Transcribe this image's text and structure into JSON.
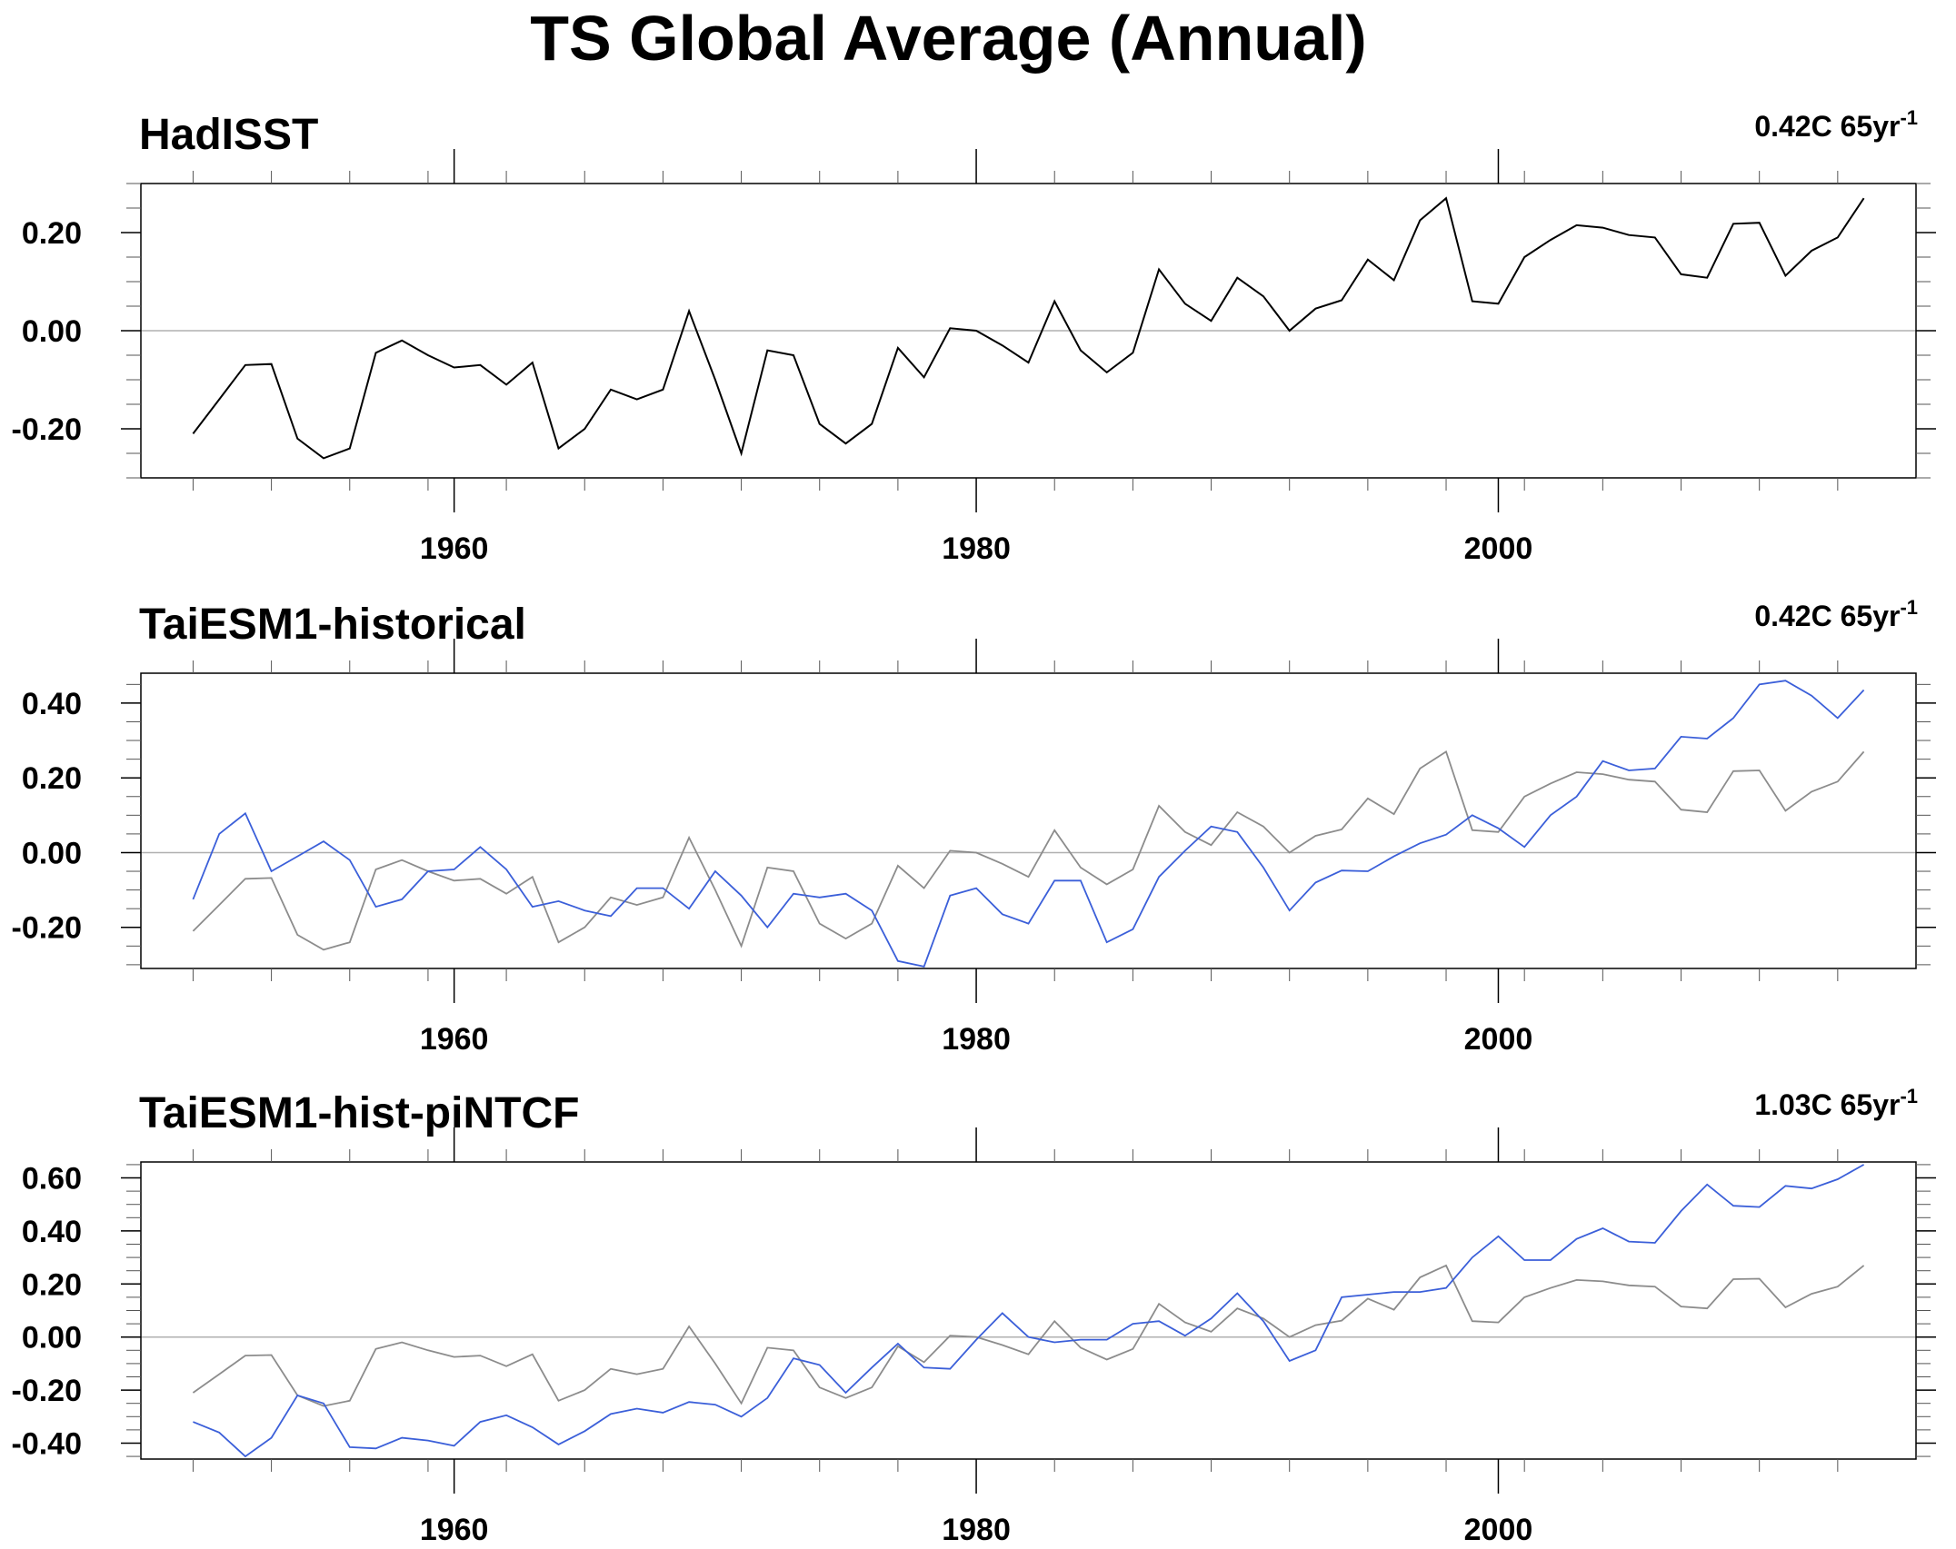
{
  "title": "TS Global Average (Annual)",
  "colors": {
    "observed": "#000000",
    "observed_overlay": "#8c8c8c",
    "model": "#3b5fd9",
    "zero_line": "#b0b0b0",
    "axis": "#000000"
  },
  "chart_data": [
    {
      "type": "line",
      "title": "HadISST",
      "trend_value": "0.42C 65yr",
      "trend_exponent": "-1",
      "xlim": [
        1948,
        2016
      ],
      "ylim": [
        -0.3,
        0.3
      ],
      "yticks": [
        -0.2,
        0.0,
        0.2
      ],
      "ytick_labels": [
        "-0.20",
        "0.00",
        "0.20"
      ],
      "xticks": [
        1960,
        1980,
        2000
      ],
      "xtick_labels": [
        "1960",
        "1980",
        "2000"
      ],
      "x_start": 1950,
      "series": [
        {
          "role": "observed",
          "values": [
            -0.21,
            -0.14,
            -0.07,
            -0.068,
            -0.22,
            -0.26,
            -0.24,
            -0.045,
            -0.02,
            -0.05,
            -0.075,
            -0.07,
            -0.11,
            -0.065,
            -0.24,
            -0.2,
            -0.12,
            -0.14,
            -0.12,
            0.04,
            -0.1,
            -0.25,
            -0.04,
            -0.05,
            -0.19,
            -0.23,
            -0.19,
            -0.035,
            -0.095,
            0.005,
            0.0,
            -0.03,
            -0.065,
            0.06,
            -0.04,
            -0.085,
            -0.045,
            0.125,
            0.055,
            0.02,
            0.108,
            0.07,
            0.0,
            0.045,
            0.062,
            0.145,
            0.103,
            0.225,
            0.27,
            0.06,
            0.055,
            0.15,
            0.185,
            0.215,
            0.21,
            0.195,
            0.19,
            0.115,
            0.108,
            0.218,
            0.22,
            0.112,
            0.163,
            0.19,
            0.27
          ]
        }
      ]
    },
    {
      "type": "line",
      "title": "TaiESM1-historical",
      "trend_value": "0.42C 65yr",
      "trend_exponent": "-1",
      "xlim": [
        1948,
        2016
      ],
      "ylim": [
        -0.31,
        0.48
      ],
      "yticks": [
        -0.2,
        0.0,
        0.2,
        0.4
      ],
      "ytick_labels": [
        "-0.20",
        "0.00",
        "0.20",
        "0.40"
      ],
      "xticks": [
        1960,
        1980,
        2000
      ],
      "xtick_labels": [
        "1960",
        "1980",
        "2000"
      ],
      "x_start": 1950,
      "series": [
        {
          "role": "observed_overlay",
          "values": [
            -0.21,
            -0.14,
            -0.07,
            -0.068,
            -0.22,
            -0.26,
            -0.24,
            -0.045,
            -0.02,
            -0.05,
            -0.075,
            -0.07,
            -0.11,
            -0.065,
            -0.24,
            -0.2,
            -0.12,
            -0.14,
            -0.12,
            0.04,
            -0.1,
            -0.25,
            -0.04,
            -0.05,
            -0.19,
            -0.23,
            -0.19,
            -0.035,
            -0.095,
            0.005,
            0.0,
            -0.03,
            -0.065,
            0.06,
            -0.04,
            -0.085,
            -0.045,
            0.125,
            0.055,
            0.02,
            0.108,
            0.07,
            0.0,
            0.045,
            0.062,
            0.145,
            0.103,
            0.225,
            0.27,
            0.06,
            0.055,
            0.15,
            0.185,
            0.215,
            0.21,
            0.195,
            0.19,
            0.115,
            0.108,
            0.218,
            0.22,
            0.112,
            0.163,
            0.19,
            0.27
          ]
        },
        {
          "role": "model",
          "values": [
            -0.125,
            0.05,
            0.105,
            -0.05,
            -0.01,
            0.03,
            -0.02,
            -0.145,
            -0.125,
            -0.05,
            -0.045,
            0.015,
            -0.045,
            -0.145,
            -0.13,
            -0.155,
            -0.17,
            -0.095,
            -0.095,
            -0.15,
            -0.05,
            -0.115,
            -0.2,
            -0.11,
            -0.12,
            -0.11,
            -0.155,
            -0.29,
            -0.305,
            -0.115,
            -0.095,
            -0.165,
            -0.19,
            -0.075,
            -0.075,
            -0.24,
            -0.205,
            -0.065,
            0.005,
            0.07,
            0.055,
            -0.04,
            -0.155,
            -0.08,
            -0.048,
            -0.05,
            -0.01,
            0.025,
            0.048,
            0.1,
            0.065,
            0.015,
            0.1,
            0.15,
            0.245,
            0.22,
            0.225,
            0.31,
            0.305,
            0.36,
            0.45,
            0.46,
            0.42,
            0.36,
            0.435
          ]
        }
      ]
    },
    {
      "type": "line",
      "title": "TaiESM1-hist-piNTCF",
      "trend_value": "1.03C 65yr",
      "trend_exponent": "-1",
      "xlim": [
        1948,
        2016
      ],
      "ylim": [
        -0.46,
        0.66
      ],
      "yticks": [
        -0.4,
        -0.2,
        0.0,
        0.2,
        0.4,
        0.6
      ],
      "ytick_labels": [
        "-0.40",
        "-0.20",
        "0.00",
        "0.20",
        "0.40",
        "0.60"
      ],
      "xticks": [
        1960,
        1980,
        2000
      ],
      "xtick_labels": [
        "1960",
        "1980",
        "2000"
      ],
      "x_start": 1950,
      "series": [
        {
          "role": "observed_overlay",
          "values": [
            -0.21,
            -0.14,
            -0.07,
            -0.068,
            -0.22,
            -0.26,
            -0.24,
            -0.045,
            -0.02,
            -0.05,
            -0.075,
            -0.07,
            -0.11,
            -0.065,
            -0.24,
            -0.2,
            -0.12,
            -0.14,
            -0.12,
            0.04,
            -0.1,
            -0.25,
            -0.04,
            -0.05,
            -0.19,
            -0.23,
            -0.19,
            -0.035,
            -0.095,
            0.005,
            0.0,
            -0.03,
            -0.065,
            0.06,
            -0.04,
            -0.085,
            -0.045,
            0.125,
            0.055,
            0.02,
            0.108,
            0.07,
            0.0,
            0.045,
            0.062,
            0.145,
            0.103,
            0.225,
            0.27,
            0.06,
            0.055,
            0.15,
            0.185,
            0.215,
            0.21,
            0.195,
            0.19,
            0.115,
            0.108,
            0.218,
            0.22,
            0.112,
            0.163,
            0.19,
            0.27
          ]
        },
        {
          "role": "model",
          "values": [
            -0.32,
            -0.36,
            -0.45,
            -0.38,
            -0.22,
            -0.25,
            -0.415,
            -0.42,
            -0.38,
            -0.39,
            -0.41,
            -0.32,
            -0.295,
            -0.34,
            -0.405,
            -0.355,
            -0.29,
            -0.27,
            -0.285,
            -0.245,
            -0.255,
            -0.3,
            -0.23,
            -0.08,
            -0.105,
            -0.21,
            -0.115,
            -0.025,
            -0.115,
            -0.12,
            -0.01,
            0.09,
            0.0,
            -0.02,
            -0.01,
            -0.01,
            0.05,
            0.06,
            0.005,
            0.07,
            0.165,
            0.06,
            -0.09,
            -0.05,
            0.15,
            0.16,
            0.17,
            0.17,
            0.185,
            0.3,
            0.38,
            0.29,
            0.29,
            0.37,
            0.41,
            0.36,
            0.355,
            0.475,
            0.575,
            0.495,
            0.49,
            0.57,
            0.56,
            0.595,
            0.65
          ]
        }
      ]
    }
  ]
}
